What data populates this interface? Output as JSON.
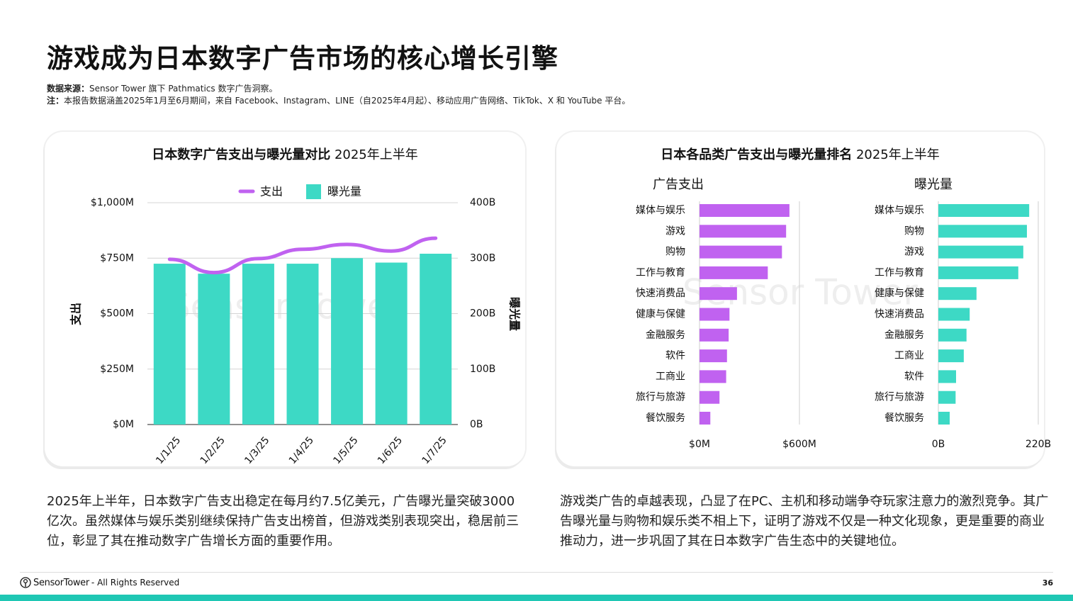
{
  "title": "游戏成为日本数字广告市场的核心增长引擎",
  "source": {
    "label": "数据来源：",
    "text": "Sensor Tower 旗下 Pathmatics 数字广告洞察。",
    "note_label": "注：",
    "note_text": "本报告数据涵盖2025年1月至6月期间，来自 Facebook、Instagram、LINE（自2025年4月起）、移动应用广告网络、TikTok、X 和 YouTube 平台。"
  },
  "colors": {
    "spend": "#c062f0",
    "impressions": "#3dd9c5",
    "accent_bar": "#1fc7b4"
  },
  "left_card": {
    "title_bold": "日本数字广告支出与曝光量对比",
    "title_normal": "2025年上半年"
  },
  "right_card": {
    "title_bold": "日本各品类广告支出与曝光量排名",
    "title_normal": "2025年上半年"
  },
  "chart_data": [
    {
      "type": "bar+line",
      "categories": [
        "1/1/25",
        "1/2/25",
        "1/3/25",
        "1/4/25",
        "1/5/25",
        "1/6/25",
        "1/7/25"
      ],
      "series": [
        {
          "name": "支出",
          "type": "line",
          "axis": "left",
          "values": [
            745,
            685,
            748,
            790,
            812,
            782,
            840
          ]
        },
        {
          "name": "曝光量",
          "type": "bar",
          "axis": "right",
          "values": [
            290,
            272,
            290,
            290,
            300,
            292,
            308
          ]
        }
      ],
      "ylabel": "支出",
      "y2label": "曝光量",
      "yticks": [
        "$0M",
        "$250M",
        "$500M",
        "$750M",
        "$1,000M"
      ],
      "ylim": [
        0,
        1000
      ],
      "y2ticks": [
        "0B",
        "100B",
        "200B",
        "300B",
        "400B"
      ],
      "y2lim": [
        0,
        400
      ],
      "grid": true,
      "legend": "top-center"
    },
    {
      "type": "bar",
      "orientation": "horizontal",
      "subtitle": "广告支出",
      "categories": [
        "媒体与娱乐",
        "游戏",
        "购物",
        "工作与教育",
        "快速消费品",
        "健康与保健",
        "金融服务",
        "软件",
        "工商业",
        "旅行与旅游",
        "餐饮服务"
      ],
      "values": [
        540,
        520,
        495,
        410,
        225,
        180,
        175,
        165,
        160,
        120,
        65
      ],
      "xticks": [
        "$0M",
        "$600M"
      ],
      "xlim": [
        0,
        600
      ]
    },
    {
      "type": "bar",
      "orientation": "horizontal",
      "subtitle": "曝光量",
      "categories": [
        "媒体与娱乐",
        "购物",
        "游戏",
        "工作与教育",
        "健康与保健",
        "快速消费品",
        "金融服务",
        "工商业",
        "软件",
        "旅行与旅游",
        "餐饮服务"
      ],
      "values": [
        200,
        195,
        187,
        176,
        84,
        69,
        62,
        56,
        39,
        38,
        25
      ],
      "xticks": [
        "0B",
        "220B"
      ],
      "xlim": [
        0,
        220
      ]
    }
  ],
  "paragraph_left": "2025年上半年，日本数字广告支出稳定在每月约7.5亿美元，广告曝光量突破3000亿次。虽然媒体与娱乐类别继续保持广告支出榜首，但游戏类别表现突出，稳居前三位，彰显了其在推动数字广告增长方面的重要作用。",
  "paragraph_right": "游戏类广告的卓越表现，凸显了在PC、主机和移动端争夺玩家注意力的激烈竞争。其广告曝光量与购物和娱乐类不相上下，证明了游戏不仅是一种文化现象，更是重要的商业推动力，进一步巩固了其在日本数字广告生态中的关键地位。",
  "footer": {
    "brand": "SensorTower",
    "rights": "- All Rights Reserved",
    "page": "36"
  },
  "watermark": "Sensor Tower"
}
